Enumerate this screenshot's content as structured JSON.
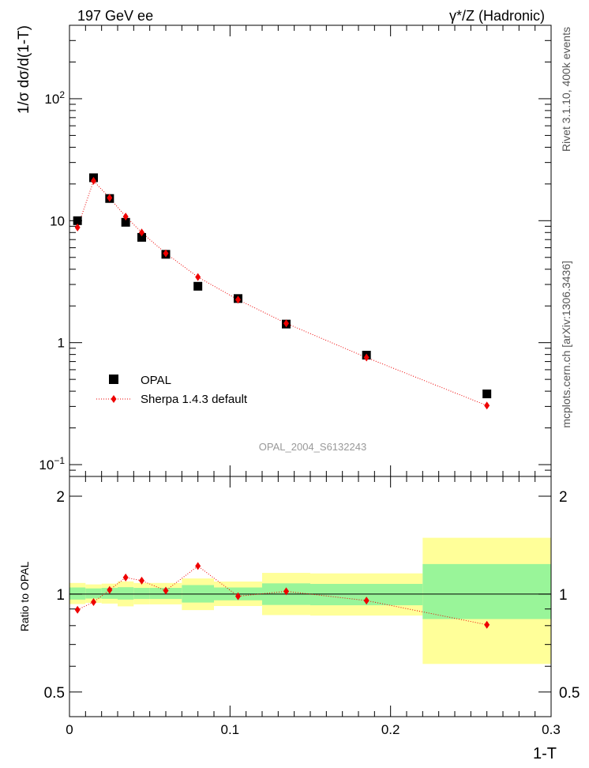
{
  "header": {
    "left": "197 GeV ee",
    "right": "γ*/Z (Hadronic)"
  },
  "side_labels": {
    "upper": "Rivet 3.1.10, 400k events",
    "lower": "mcplots.cern.ch [arXiv:1306.3436]"
  },
  "watermark": "OPAL_2004_S6132243",
  "colors": {
    "data": "#000000",
    "mc": "#ee0000",
    "band_inner": "#99f599",
    "band_outer": "#ffff99"
  },
  "chart_data": [
    {
      "type": "scatter",
      "ylabel": "1/σ dσ/d(1-T)",
      "yscale": "log",
      "xlim": [
        0,
        0.3
      ],
      "ylim": [
        0.08,
        400
      ],
      "yticks": [
        {
          "value": 0.1,
          "base": "10",
          "exp": "−1"
        },
        {
          "value": 1,
          "label": "1"
        },
        {
          "value": 10,
          "label": "10"
        },
        {
          "value": 100,
          "base": "10",
          "exp": "2"
        }
      ],
      "legend_position": "middle-left",
      "series": [
        {
          "name": "OPAL",
          "marker": "square",
          "points": [
            {
              "x": 0.005,
              "y": 10.0
            },
            {
              "x": 0.015,
              "y": 22.5
            },
            {
              "x": 0.025,
              "y": 15.2
            },
            {
              "x": 0.035,
              "y": 9.7
            },
            {
              "x": 0.045,
              "y": 7.3
            },
            {
              "x": 0.06,
              "y": 5.3
            },
            {
              "x": 0.08,
              "y": 2.9
            },
            {
              "x": 0.105,
              "y": 2.3
            },
            {
              "x": 0.135,
              "y": 1.42
            },
            {
              "x": 0.185,
              "y": 0.79
            },
            {
              "x": 0.26,
              "y": 0.38
            }
          ]
        },
        {
          "name": "Sherpa 1.4.3 default",
          "marker": "diamond",
          "line": "dotted",
          "points": [
            {
              "x": 0.005,
              "y": 8.8
            },
            {
              "x": 0.015,
              "y": 21.2
            },
            {
              "x": 0.025,
              "y": 15.4
            },
            {
              "x": 0.035,
              "y": 10.8
            },
            {
              "x": 0.045,
              "y": 8.0
            },
            {
              "x": 0.06,
              "y": 5.4
            },
            {
              "x": 0.08,
              "y": 3.45
            },
            {
              "x": 0.105,
              "y": 2.25
            },
            {
              "x": 0.135,
              "y": 1.44
            },
            {
              "x": 0.185,
              "y": 0.755
            },
            {
              "x": 0.26,
              "y": 0.305
            }
          ]
        }
      ]
    },
    {
      "type": "line",
      "ylabel": "Ratio to OPAL",
      "xlabel": "1-T",
      "xlim": [
        0,
        0.3
      ],
      "ylim": [
        0.42,
        2.3
      ],
      "yscale": "log",
      "xticks": [
        {
          "value": 0,
          "label": "0"
        },
        {
          "value": 0.1,
          "label": "0.1"
        },
        {
          "value": 0.2,
          "label": "0.2"
        },
        {
          "value": 0.3,
          "label": "0.3"
        }
      ],
      "yticks": [
        {
          "value": 0.5,
          "label": "0.5"
        },
        {
          "value": 1,
          "label": "1"
        },
        {
          "value": 2,
          "label": "2"
        }
      ],
      "bands": [
        {
          "x0": 0.0,
          "x1": 0.01,
          "inner": [
            0.962,
            1.048
          ],
          "outer": [
            0.932,
            1.082
          ]
        },
        {
          "x0": 0.01,
          "x1": 0.02,
          "inner": [
            0.969,
            1.041
          ],
          "outer": [
            0.94,
            1.071
          ]
        },
        {
          "x0": 0.02,
          "x1": 0.03,
          "inner": [
            0.967,
            1.045
          ],
          "outer": [
            0.935,
            1.077
          ]
        },
        {
          "x0": 0.03,
          "x1": 0.04,
          "inner": [
            0.962,
            1.05
          ],
          "outer": [
            0.917,
            1.094
          ]
        },
        {
          "x0": 0.04,
          "x1": 0.05,
          "inner": [
            0.966,
            1.045
          ],
          "outer": [
            0.93,
            1.082
          ]
        },
        {
          "x0": 0.05,
          "x1": 0.07,
          "inner": [
            0.966,
            1.045
          ],
          "outer": [
            0.93,
            1.082
          ]
        },
        {
          "x0": 0.07,
          "x1": 0.09,
          "inner": [
            0.942,
            1.066
          ],
          "outer": [
            0.893,
            1.117
          ]
        },
        {
          "x0": 0.09,
          "x1": 0.12,
          "inner": [
            0.957,
            1.048
          ],
          "outer": [
            0.919,
            1.093
          ]
        },
        {
          "x0": 0.12,
          "x1": 0.15,
          "inner": [
            0.926,
            1.079
          ],
          "outer": [
            0.862,
            1.162
          ]
        },
        {
          "x0": 0.15,
          "x1": 0.22,
          "inner": [
            0.924,
            1.075
          ],
          "outer": [
            0.859,
            1.158
          ]
        },
        {
          "x0": 0.22,
          "x1": 0.3,
          "inner": [
            0.838,
            1.237
          ],
          "outer": [
            0.61,
            1.49
          ]
        }
      ],
      "series": [
        {
          "name": "Sherpa 1.4.3 default",
          "marker": "diamond",
          "line": "dotted",
          "points": [
            {
              "x": 0.005,
              "y": 0.895
            },
            {
              "x": 0.015,
              "y": 0.945
            },
            {
              "x": 0.025,
              "y": 1.03
            },
            {
              "x": 0.035,
              "y": 1.125
            },
            {
              "x": 0.045,
              "y": 1.1
            },
            {
              "x": 0.06,
              "y": 1.025
            },
            {
              "x": 0.08,
              "y": 1.22
            },
            {
              "x": 0.105,
              "y": 0.985
            },
            {
              "x": 0.135,
              "y": 1.02
            },
            {
              "x": 0.185,
              "y": 0.955
            },
            {
              "x": 0.26,
              "y": 0.805
            }
          ]
        }
      ]
    }
  ]
}
